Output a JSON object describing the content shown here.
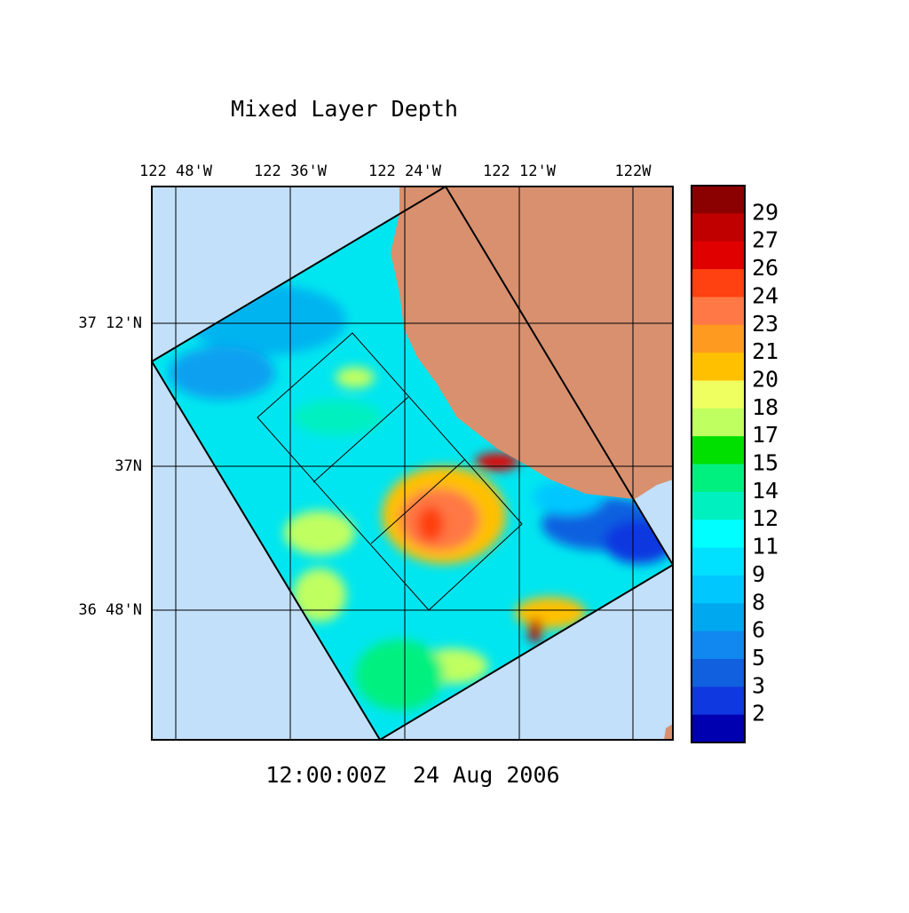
{
  "title": "Mixed Layer Depth",
  "time": "12:00:00Z  24 Aug 2006",
  "lon_labels": [
    "122 48'W",
    "122 36'W",
    "122 24'W",
    "122 12'W",
    "122W"
  ],
  "lat_labels": [
    "37 12'N",
    "37N",
    "36 48'N"
  ],
  "colorbar": {
    "labels": [
      29,
      27,
      26,
      24,
      23,
      21,
      20,
      18,
      17,
      15,
      14,
      12,
      11,
      9,
      8,
      6,
      5,
      3,
      2
    ],
    "colors": [
      "#8b0000",
      "#c00000",
      "#e00000",
      "#ff4010",
      "#ff7845",
      "#ff9a20",
      "#ffc000",
      "#f0ff60",
      "#c0ff60",
      "#00e000",
      "#00f080",
      "#00f0c0",
      "#00ffff",
      "#00e0ff",
      "#00c8ff",
      "#00a8f0",
      "#1088f0",
      "#1060e0",
      "#1038e0",
      "#0000b0"
    ]
  }
}
